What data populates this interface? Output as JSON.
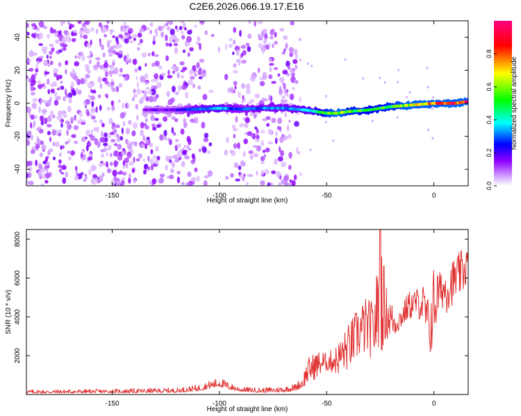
{
  "chart_data": [
    {
      "type": "heatmap",
      "title": "C2E6.2026.066.19.17.E16",
      "xlabel": "Height of straight line (km)",
      "ylabel": "Frequency (Hz)",
      "xlim": [
        -190,
        16
      ],
      "ylim": [
        -50,
        50
      ],
      "xticks": [
        -150,
        -100,
        -50,
        0
      ],
      "xtick_labels": [
        "-150",
        "-100",
        "-50",
        "0"
      ],
      "yticks": [
        -40,
        -20,
        0,
        20,
        40
      ],
      "ytick_labels": [
        "-40",
        "-20",
        "0",
        "20",
        "40"
      ],
      "colorbar": {
        "label": "Normalized spectral amplitude",
        "range": [
          0,
          1
        ],
        "ticks": [
          0.0,
          0.2,
          0.4,
          0.6,
          0.8
        ],
        "tick_labels": [
          "0.0",
          "0.2",
          "0.4",
          "0.6",
          "0.8"
        ],
        "colormap": [
          "#ffffff",
          "#a000ff",
          "#0000ff",
          "#00ffff",
          "#00ff00",
          "#ffff00",
          "#ff0000",
          "#ff00a0"
        ]
      },
      "signal_trace": {
        "description_points_x": [
          -135,
          -120,
          -110,
          -100,
          -90,
          -80,
          -70,
          -60,
          -55,
          -50,
          -45,
          -40,
          -30,
          -20,
          -10,
          0,
          10,
          15
        ],
        "frequency_hz": [
          -4,
          -4,
          -3.5,
          -3,
          -3.5,
          -3,
          -3,
          -4,
          -5,
          -6,
          -6,
          -5,
          -4,
          -2,
          -1,
          0,
          0,
          1
        ],
        "amplitude": [
          0.15,
          0.2,
          0.35,
          0.4,
          0.3,
          0.35,
          0.35,
          0.4,
          0.45,
          0.6,
          0.7,
          0.6,
          0.55,
          0.6,
          0.7,
          0.85,
          0.95,
          0.95
        ]
      },
      "noise_region_x": [
        -190,
        -62
      ]
    },
    {
      "type": "line",
      "xlabel": "Height of straight line (km)",
      "ylabel": "SNR (10 * v/v)",
      "xlim": [
        -190,
        16
      ],
      "ylim": [
        0,
        8500
      ],
      "xticks": [
        -150,
        -100,
        -50,
        0
      ],
      "xtick_labels": [
        "-150",
        "-100",
        "-50",
        "0"
      ],
      "yticks": [
        2000,
        4000,
        6000,
        8000
      ],
      "ytick_labels": [
        "2000",
        "4000",
        "6000",
        "8000"
      ],
      "color": "#e03030",
      "envelope": {
        "x": [
          -190,
          -150,
          -120,
          -110,
          -105,
          -100,
          -95,
          -90,
          -80,
          -70,
          -65,
          -62,
          -58,
          -55,
          -52,
          -50,
          -45,
          -40,
          -35,
          -32,
          -28,
          -25,
          -22,
          -18,
          -15,
          -12,
          -8,
          -5,
          -2,
          0,
          3,
          6,
          10,
          14,
          16
        ],
        "y_min": [
          60,
          80,
          100,
          180,
          300,
          400,
          250,
          150,
          100,
          120,
          200,
          300,
          600,
          800,
          1000,
          1200,
          1000,
          1200,
          1800,
          2000,
          1800,
          2000,
          2800,
          3000,
          3400,
          3800,
          4000,
          3600,
          1800,
          2500,
          4500,
          4200,
          4800,
          5200,
          6000
        ],
        "y_max": [
          250,
          280,
          350,
          500,
          700,
          900,
          600,
          400,
          350,
          450,
          550,
          900,
          2000,
          2200,
          2300,
          2100,
          2600,
          3600,
          4600,
          5000,
          4800,
          8500,
          5500,
          4300,
          4600,
          5300,
          5500,
          5700,
          4800,
          6800,
          6300,
          6700,
          7100,
          7600,
          7700
        ]
      },
      "peak": {
        "x": -25,
        "y": 8500
      }
    }
  ]
}
